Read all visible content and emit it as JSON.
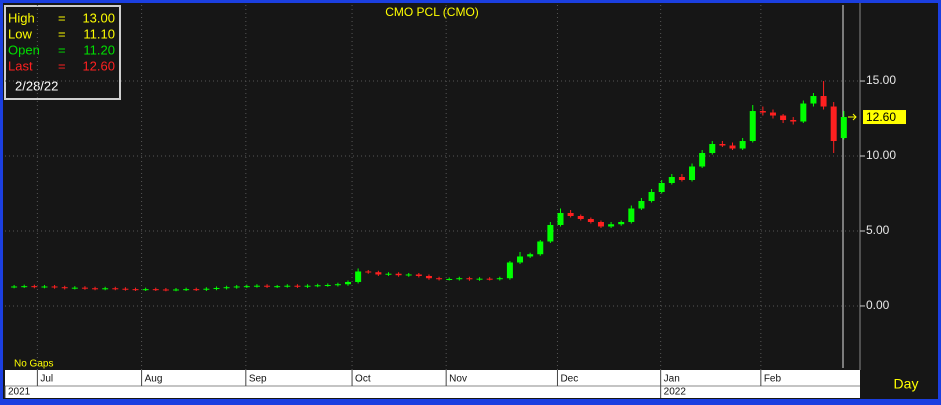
{
  "chart_data": {
    "type": "candlestick",
    "title": "CMO  PCL  (CMO)",
    "info": [
      {
        "name": "High",
        "eq": "=",
        "value": "13.00",
        "color": "#ffff00"
      },
      {
        "name": "Low",
        "eq": "=",
        "value": "11.10",
        "color": "#ffff00"
      },
      {
        "name": "Open",
        "eq": "=",
        "value": "11.20",
        "color": "#00e000"
      },
      {
        "name": "Last",
        "eq": "=",
        "value": "12.60",
        "color": "#ff2020"
      }
    ],
    "date": "2/28/22",
    "note": "No  Gaps",
    "period": "Day",
    "price_tag": {
      "value": 12.6,
      "label": "12.60"
    },
    "up_color": "#00ff00",
    "down_color": "#ff2020",
    "ylim": [
      -4.27,
      20.07
    ],
    "yticks": [
      {
        "value": 0,
        "label": "0.00"
      },
      {
        "value": 5,
        "label": "5.00"
      },
      {
        "value": 10,
        "label": "10.00"
      },
      {
        "value": 15,
        "label": "15.00"
      }
    ],
    "xlim": [
      -0.9,
      83.6
    ],
    "xticks": [
      {
        "value": 2.3,
        "label": "Jul"
      },
      {
        "value": 12.6,
        "label": "Aug"
      },
      {
        "value": 22.9,
        "label": "Sep"
      },
      {
        "value": 33.4,
        "label": "Oct"
      },
      {
        "value": 42.7,
        "label": "Nov"
      },
      {
        "value": 53.7,
        "label": "Dec"
      },
      {
        "value": 63.9,
        "label": "Jan"
      },
      {
        "value": 73.8,
        "label": "Feb"
      }
    ],
    "years": [
      {
        "value": -0.9,
        "label": "2021"
      },
      {
        "value": 63.9,
        "label": "2022"
      }
    ],
    "grid": true,
    "open": [
      1.28,
      1.3,
      1.32,
      1.28,
      1.3,
      1.25,
      1.2,
      1.22,
      1.18,
      1.15,
      1.18,
      1.15,
      1.12,
      1.1,
      1.12,
      1.1,
      1.08,
      1.1,
      1.12,
      1.1,
      1.15,
      1.2,
      1.25,
      1.3,
      1.32,
      1.35,
      1.3,
      1.32,
      1.35,
      1.3,
      1.35,
      1.38,
      1.4,
      1.45,
      1.6,
      2.3,
      2.25,
      2.1,
      2.15,
      2.05,
      2.1,
      2.0,
      1.85,
      1.8,
      1.8,
      1.85,
      1.78,
      1.82,
      1.8,
      1.85,
      2.9,
      3.3,
      3.45,
      4.3,
      5.4,
      6.2,
      6.0,
      5.8,
      5.6,
      5.3,
      5.45,
      5.6,
      6.5,
      7.0,
      7.6,
      8.2,
      8.6,
      8.4,
      9.3,
      10.2,
      10.8,
      10.7,
      10.5,
      11.0,
      13.0,
      12.9,
      12.7,
      12.4,
      12.3,
      13.5,
      14.0,
      13.3,
      11.2
    ],
    "high": [
      1.4,
      1.42,
      1.42,
      1.4,
      1.4,
      1.35,
      1.32,
      1.32,
      1.28,
      1.28,
      1.28,
      1.25,
      1.22,
      1.22,
      1.22,
      1.2,
      1.2,
      1.22,
      1.22,
      1.25,
      1.3,
      1.35,
      1.4,
      1.42,
      1.45,
      1.45,
      1.4,
      1.45,
      1.45,
      1.45,
      1.48,
      1.5,
      1.55,
      1.7,
      2.5,
      2.4,
      2.35,
      2.25,
      2.25,
      2.2,
      2.2,
      2.1,
      1.95,
      1.9,
      1.95,
      1.95,
      1.92,
      1.92,
      1.95,
      3.0,
      3.6,
      3.55,
      4.4,
      5.6,
      6.5,
      6.4,
      6.1,
      5.9,
      5.7,
      5.6,
      5.7,
      6.7,
      7.2,
      7.8,
      8.4,
      8.8,
      8.8,
      9.5,
      10.4,
      11.0,
      11.0,
      10.9,
      11.2,
      13.4,
      13.3,
      13.1,
      12.8,
      12.6,
      13.7,
      14.2,
      15.0,
      13.6,
      13.0
    ],
    "low": [
      1.18,
      1.2,
      1.18,
      1.18,
      1.15,
      1.1,
      1.1,
      1.08,
      1.05,
      1.05,
      1.05,
      1.02,
      1.0,
      1.0,
      1.0,
      0.98,
      0.98,
      1.0,
      1.0,
      1.0,
      1.05,
      1.1,
      1.15,
      1.2,
      1.22,
      1.2,
      1.2,
      1.22,
      1.2,
      1.2,
      1.25,
      1.28,
      1.3,
      1.35,
      1.5,
      2.15,
      2.0,
      2.0,
      1.95,
      1.95,
      1.9,
      1.75,
      1.7,
      1.7,
      1.7,
      1.68,
      1.68,
      1.7,
      1.7,
      1.75,
      2.8,
      3.2,
      3.35,
      4.2,
      5.3,
      5.9,
      5.7,
      5.5,
      5.2,
      5.2,
      5.35,
      5.5,
      6.4,
      6.9,
      7.5,
      8.1,
      8.3,
      8.3,
      9.2,
      10.1,
      10.6,
      10.4,
      10.4,
      10.9,
      12.7,
      12.5,
      12.2,
      12.1,
      12.2,
      13.3,
      13.1,
      10.2,
      11.1
    ],
    "close": [
      1.3,
      1.32,
      1.28,
      1.3,
      1.25,
      1.2,
      1.22,
      1.18,
      1.15,
      1.18,
      1.15,
      1.12,
      1.1,
      1.12,
      1.1,
      1.08,
      1.1,
      1.12,
      1.1,
      1.15,
      1.2,
      1.25,
      1.3,
      1.32,
      1.35,
      1.3,
      1.32,
      1.35,
      1.3,
      1.35,
      1.38,
      1.4,
      1.45,
      1.6,
      2.3,
      2.25,
      2.1,
      2.15,
      2.05,
      2.1,
      2.0,
      1.85,
      1.8,
      1.8,
      1.85,
      1.78,
      1.82,
      1.8,
      1.85,
      2.9,
      3.3,
      3.45,
      4.3,
      5.4,
      6.2,
      6.0,
      5.8,
      5.6,
      5.3,
      5.45,
      5.6,
      6.5,
      7.0,
      7.6,
      8.2,
      8.6,
      8.4,
      9.3,
      10.2,
      10.8,
      10.7,
      10.5,
      11.0,
      13.0,
      12.9,
      12.7,
      12.4,
      12.3,
      13.5,
      14.0,
      13.3,
      11.0,
      12.6
    ]
  }
}
